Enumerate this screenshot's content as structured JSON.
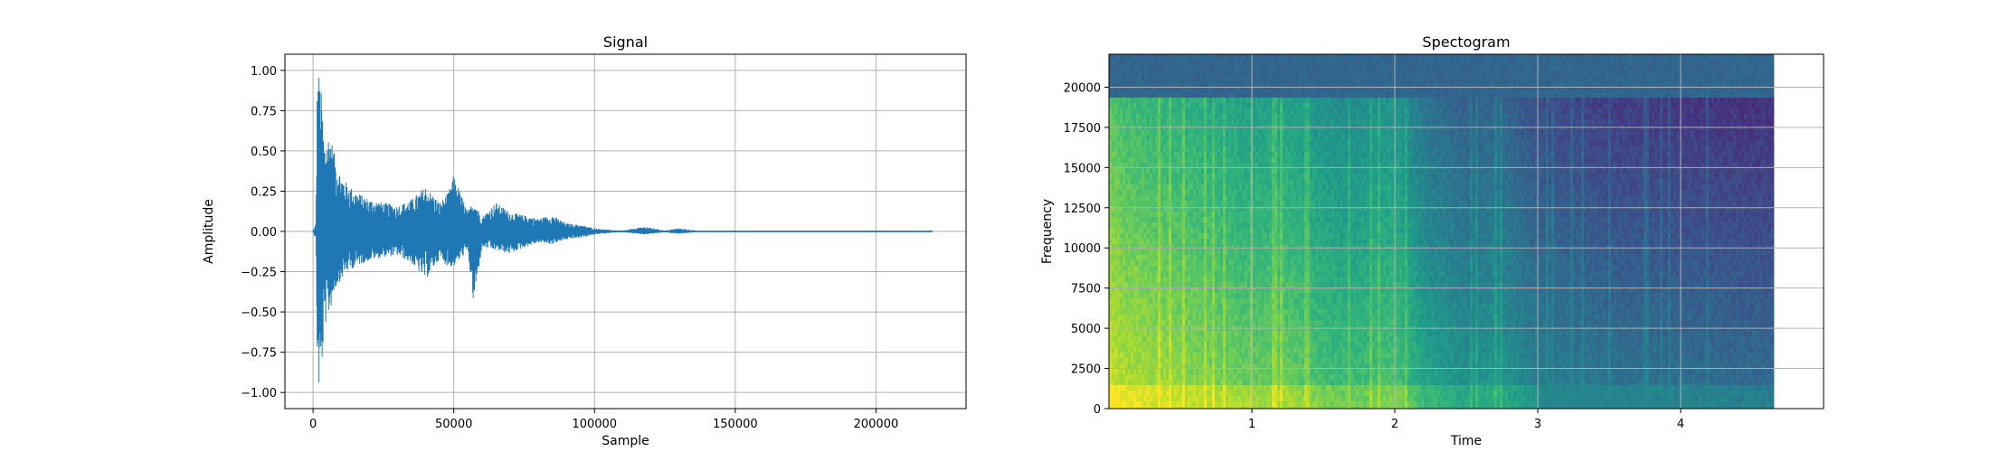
{
  "chart_data": [
    {
      "type": "line",
      "title": "Signal",
      "xlabel": "Sample",
      "ylabel": "Amplitude",
      "xlim": [
        -10000,
        232000
      ],
      "ylim": [
        -1.1,
        1.1
      ],
      "xticks": [
        0,
        50000,
        100000,
        150000,
        200000
      ],
      "xtick_labels": [
        "0",
        "50000",
        "100000",
        "150000",
        "200000"
      ],
      "yticks": [
        1.0,
        0.75,
        0.5,
        0.25,
        0.0,
        -0.25,
        -0.5,
        -0.75,
        -1.0
      ],
      "ytick_labels": [
        "1.00",
        "0.75",
        "0.50",
        "0.25",
        "0.00",
        "−0.25",
        "−0.50",
        "−0.75",
        "−1.00"
      ],
      "grid": true,
      "color": "#1f77b4",
      "series": [
        {
          "x": [
            0,
            1000,
            1500,
            2000,
            3000,
            4000,
            6000,
            8000,
            10000,
            12000,
            15000,
            20000,
            25000,
            30000,
            35000,
            40000,
            45000,
            48000,
            50000,
            55000,
            57000,
            60000,
            65000,
            70000,
            75000,
            80000,
            85000,
            90000,
            95000,
            100000,
            105000,
            110000,
            118000,
            125000,
            130000,
            137000,
            150000,
            180000,
            200000,
            220000
          ],
          "env_max": [
            0.0,
            0.05,
            0.95,
            1.0,
            0.85,
            0.55,
            0.62,
            0.45,
            0.35,
            0.3,
            0.25,
            0.2,
            0.18,
            0.16,
            0.2,
            0.28,
            0.18,
            0.24,
            0.35,
            0.12,
            0.2,
            0.09,
            0.18,
            0.12,
            0.1,
            0.08,
            0.1,
            0.05,
            0.04,
            0.02,
            0.01,
            0.005,
            0.03,
            0.005,
            0.02,
            0.003,
            0.002,
            0.003,
            0.001,
            0.0
          ],
          "env_min": [
            0.0,
            -0.05,
            -0.85,
            -1.0,
            -0.88,
            -0.6,
            -0.5,
            -0.35,
            -0.3,
            -0.25,
            -0.22,
            -0.18,
            -0.16,
            -0.15,
            -0.2,
            -0.3,
            -0.17,
            -0.22,
            -0.22,
            -0.12,
            -0.46,
            -0.1,
            -0.12,
            -0.14,
            -0.1,
            -0.07,
            -0.08,
            -0.05,
            -0.04,
            -0.02,
            -0.01,
            -0.005,
            -0.02,
            -0.005,
            -0.015,
            -0.003,
            -0.002,
            -0.003,
            -0.001,
            0.0
          ]
        }
      ]
    },
    {
      "type": "heatmap",
      "title": "Spectogram",
      "xlabel": "Time",
      "ylabel": "Frequency",
      "xlim": [
        0,
        5
      ],
      "ylim": [
        0,
        22050
      ],
      "data_extent_x": [
        0,
        4.65
      ],
      "xticks": [
        1,
        2,
        3,
        4
      ],
      "xtick_labels": [
        "1",
        "2",
        "3",
        "4"
      ],
      "yticks": [
        0,
        2500,
        5000,
        7500,
        10000,
        12500,
        15000,
        17500,
        20000
      ],
      "ytick_labels": [
        "0",
        "2500",
        "5000",
        "7500",
        "10000",
        "12500",
        "15000",
        "17500",
        "20000"
      ],
      "grid": true,
      "colormap": "viridis",
      "cutoff_frequency": 19500,
      "time_energy_profile": {
        "t": [
          0,
          0.1,
          0.5,
          1.0,
          1.2,
          1.5,
          1.7,
          2.0,
          2.2,
          2.5,
          2.7,
          3.0,
          3.5,
          4.0,
          4.65
        ],
        "level": [
          0.95,
          0.9,
          0.85,
          0.78,
          0.8,
          0.72,
          0.7,
          0.74,
          0.6,
          0.52,
          0.55,
          0.45,
          0.4,
          0.38,
          0.36
        ]
      }
    }
  ]
}
